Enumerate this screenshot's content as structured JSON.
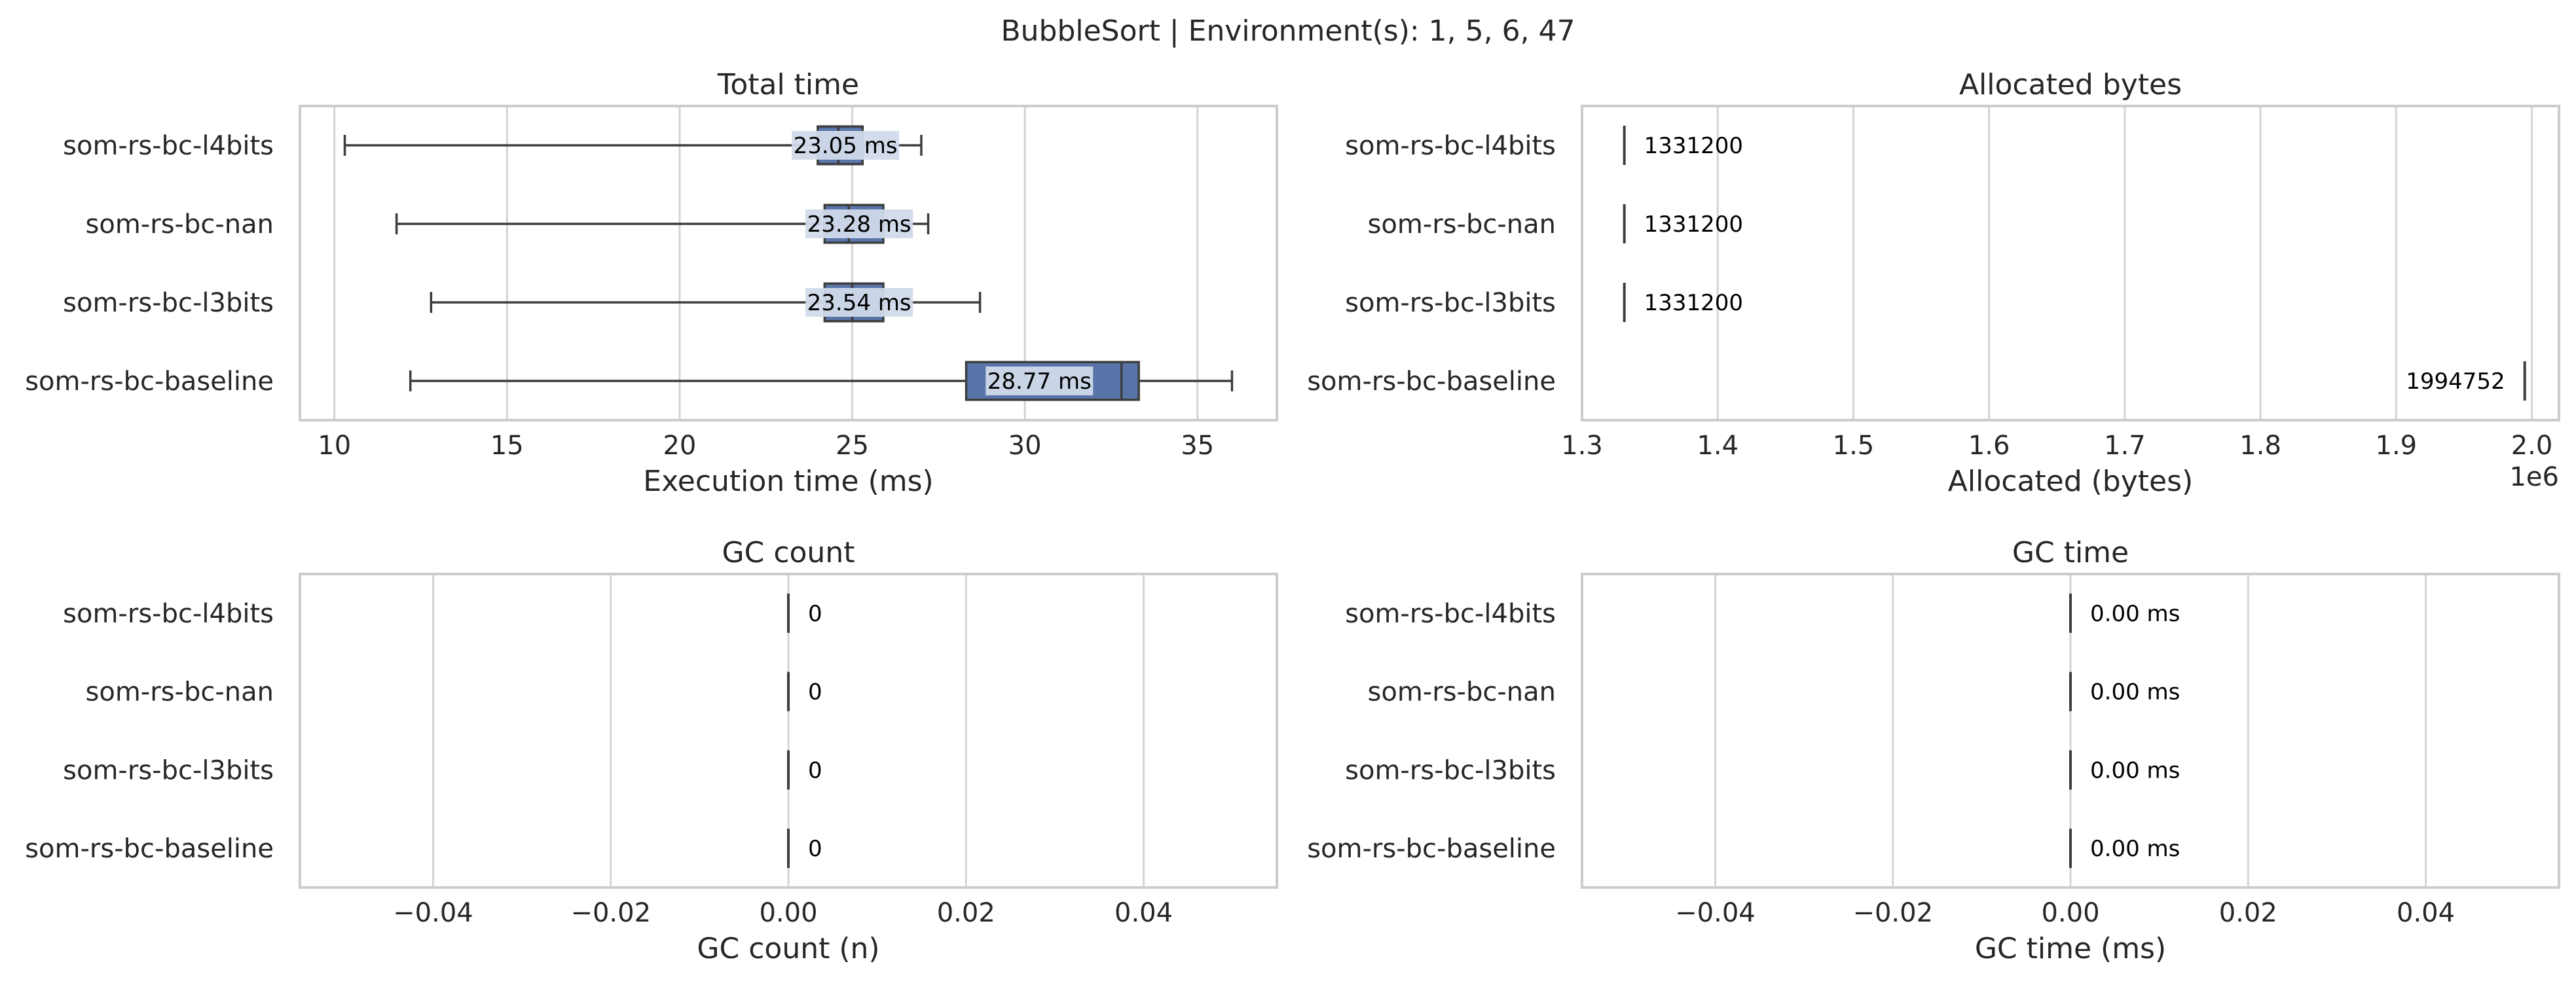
{
  "title": "BubbleSort | Environment(s): 1, 5, 6, 47",
  "colors": {
    "box_fill": "#5874a9",
    "box_fill_light": "#a8b9d8",
    "line": "#3d3d3d",
    "grid": "#d4d4d4",
    "spine": "#cccccc",
    "label_bg": "#d0daea"
  },
  "chart_data": [
    {
      "type": "box",
      "id": "total_time",
      "title": "Total time",
      "xlabel": "Execution time (ms)",
      "xlim": [
        9.0,
        37.3
      ],
      "xticks": [
        10,
        15,
        20,
        25,
        30,
        35
      ],
      "xtick_labels": [
        "10",
        "15",
        "20",
        "25",
        "30",
        "35"
      ],
      "grid": true,
      "categories": [
        "som-rs-bc-l4bits",
        "som-rs-bc-nan",
        "som-rs-bc-l3bits",
        "som-rs-bc-baseline"
      ],
      "boxes": [
        {
          "min": 10.3,
          "q1": 24.0,
          "median": 24.6,
          "q3": 25.3,
          "max": 27.0,
          "value_label": "23.05 ms"
        },
        {
          "min": 11.8,
          "q1": 24.2,
          "median": 24.9,
          "q3": 25.9,
          "max": 27.2,
          "value_label": "23.28 ms"
        },
        {
          "min": 12.8,
          "q1": 24.2,
          "median": 25.0,
          "q3": 25.9,
          "max": 28.7,
          "value_label": "23.54 ms"
        },
        {
          "min": 12.2,
          "q1": 28.3,
          "median": 32.8,
          "q3": 33.3,
          "max": 36.0,
          "value_label": "28.77 ms"
        }
      ]
    },
    {
      "type": "box",
      "id": "allocated_bytes",
      "title": "Allocated bytes",
      "xlabel": "Allocated (bytes)",
      "x_offset_label": "1e6",
      "xlim": [
        1.3,
        2.02
      ],
      "xticks": [
        1.3,
        1.4,
        1.5,
        1.6,
        1.7,
        1.8,
        1.9,
        2.0
      ],
      "xtick_labels": [
        "1.3",
        "1.4",
        "1.5",
        "1.6",
        "1.7",
        "1.8",
        "1.9",
        "2.0"
      ],
      "grid": true,
      "categories": [
        "som-rs-bc-l4bits",
        "som-rs-bc-nan",
        "som-rs-bc-l3bits",
        "som-rs-bc-baseline"
      ],
      "boxes": [
        {
          "min": 1.3312,
          "q1": 1.3312,
          "median": 1.3312,
          "q3": 1.3312,
          "max": 1.3312,
          "value_label": "1331200",
          "label_side": "right"
        },
        {
          "min": 1.3312,
          "q1": 1.3312,
          "median": 1.3312,
          "q3": 1.3312,
          "max": 1.3312,
          "value_label": "1331200",
          "label_side": "right"
        },
        {
          "min": 1.3312,
          "q1": 1.3312,
          "median": 1.3312,
          "q3": 1.3312,
          "max": 1.3312,
          "value_label": "1331200",
          "label_side": "right"
        },
        {
          "min": 1.994752,
          "q1": 1.994752,
          "median": 1.994752,
          "q3": 1.994752,
          "max": 1.994752,
          "value_label": "1994752",
          "label_side": "left"
        }
      ]
    },
    {
      "type": "box",
      "id": "gc_count",
      "title": "GC count",
      "xlabel": "GC count (n)",
      "xlim": [
        -0.055,
        0.055
      ],
      "xticks": [
        -0.04,
        -0.02,
        0.0,
        0.02,
        0.04
      ],
      "xtick_labels": [
        "−0.04",
        "−0.02",
        "0.00",
        "0.02",
        "0.04"
      ],
      "grid": true,
      "categories": [
        "som-rs-bc-l4bits",
        "som-rs-bc-nan",
        "som-rs-bc-l3bits",
        "som-rs-bc-baseline"
      ],
      "boxes": [
        {
          "min": 0,
          "q1": 0,
          "median": 0,
          "q3": 0,
          "max": 0,
          "value_label": "0",
          "label_side": "right"
        },
        {
          "min": 0,
          "q1": 0,
          "median": 0,
          "q3": 0,
          "max": 0,
          "value_label": "0",
          "label_side": "right"
        },
        {
          "min": 0,
          "q1": 0,
          "median": 0,
          "q3": 0,
          "max": 0,
          "value_label": "0",
          "label_side": "right"
        },
        {
          "min": 0,
          "q1": 0,
          "median": 0,
          "q3": 0,
          "max": 0,
          "value_label": "0",
          "label_side": "right"
        }
      ]
    },
    {
      "type": "box",
      "id": "gc_time",
      "title": "GC time",
      "xlabel": "GC time (ms)",
      "xlim": [
        -0.055,
        0.055
      ],
      "xticks": [
        -0.04,
        -0.02,
        0.0,
        0.02,
        0.04
      ],
      "xtick_labels": [
        "−0.04",
        "−0.02",
        "0.00",
        "0.02",
        "0.04"
      ],
      "grid": true,
      "categories": [
        "som-rs-bc-l4bits",
        "som-rs-bc-nan",
        "som-rs-bc-l3bits",
        "som-rs-bc-baseline"
      ],
      "boxes": [
        {
          "min": 0,
          "q1": 0,
          "median": 0,
          "q3": 0,
          "max": 0,
          "value_label": "0.00 ms",
          "label_side": "right"
        },
        {
          "min": 0,
          "q1": 0,
          "median": 0,
          "q3": 0,
          "max": 0,
          "value_label": "0.00 ms",
          "label_side": "right"
        },
        {
          "min": 0,
          "q1": 0,
          "median": 0,
          "q3": 0,
          "max": 0,
          "value_label": "0.00 ms",
          "label_side": "right"
        },
        {
          "min": 0,
          "q1": 0,
          "median": 0,
          "q3": 0,
          "max": 0,
          "value_label": "0.00 ms",
          "label_side": "right"
        }
      ]
    }
  ]
}
